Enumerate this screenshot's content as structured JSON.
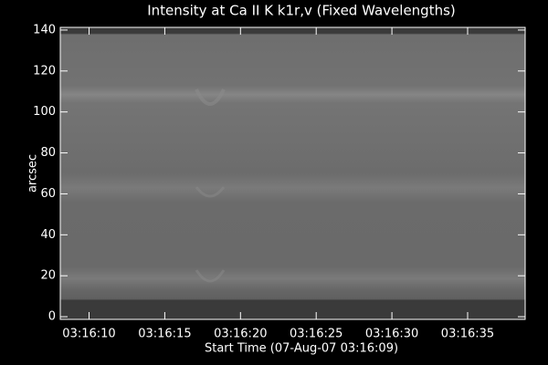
{
  "chart_data": {
    "type": "image",
    "title": "Intensity at Ca II K k1r,v (Fixed Wavelengths)",
    "x_label": "Start Time (07-Aug-07 03:16:09)",
    "y_label": "arcsec",
    "xlim": [
      8.1,
      38.8
    ],
    "xticks": [
      {
        "value": 10,
        "label": "03:16:10"
      },
      {
        "value": 15,
        "label": "03:16:15"
      },
      {
        "value": 20,
        "label": "03:16:20"
      },
      {
        "value": 25,
        "label": "03:16:25"
      },
      {
        "value": 30,
        "label": "03:16:30"
      },
      {
        "value": 35,
        "label": "03:16:35"
      }
    ],
    "ylim": [
      -1.3,
      141.3
    ],
    "yticks": [
      0,
      20,
      40,
      60,
      80,
      100,
      120,
      140
    ]
  }
}
